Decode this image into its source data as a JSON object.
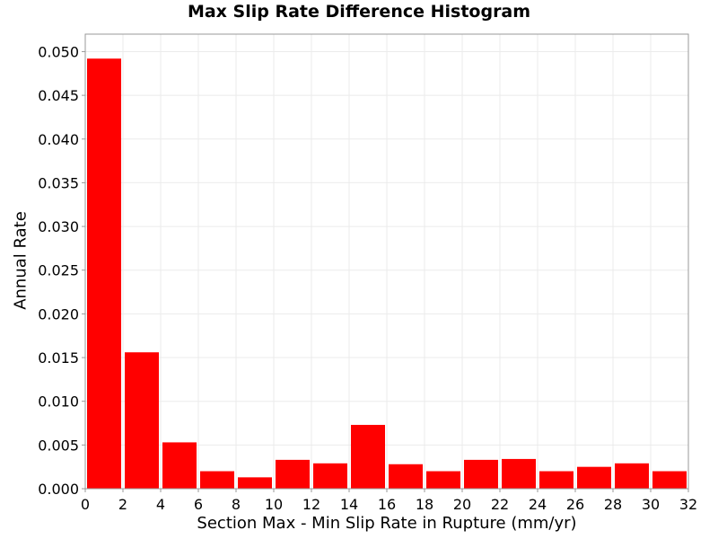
{
  "chart_data": {
    "type": "bar",
    "title": "Max Slip Rate Difference Histogram",
    "xlabel": "Section Max - Min Slip Rate in Rupture (mm/yr)",
    "ylabel": "Annual Rate",
    "xlim": [
      0,
      32
    ],
    "ylim": [
      0,
      0.052
    ],
    "x_ticks": [
      "0",
      "2",
      "4",
      "6",
      "8",
      "10",
      "12",
      "14",
      "16",
      "18",
      "20",
      "22",
      "24",
      "26",
      "28",
      "30",
      "32"
    ],
    "y_ticks": [
      "0.000",
      "0.005",
      "0.010",
      "0.015",
      "0.020",
      "0.025",
      "0.030",
      "0.035",
      "0.040",
      "0.045",
      "0.050"
    ],
    "bin_width": 2,
    "x": [
      1,
      3,
      5,
      7,
      9,
      11,
      13,
      15,
      17,
      19,
      21,
      23,
      25,
      27,
      29,
      31
    ],
    "values": [
      0.0492,
      0.0156,
      0.0053,
      0.002,
      0.0013,
      0.0033,
      0.0029,
      0.0073,
      0.0028,
      0.002,
      0.0033,
      0.0034,
      0.002,
      0.0025,
      0.0029,
      0.002
    ],
    "bar_color": "#ff0000",
    "grid": true
  }
}
